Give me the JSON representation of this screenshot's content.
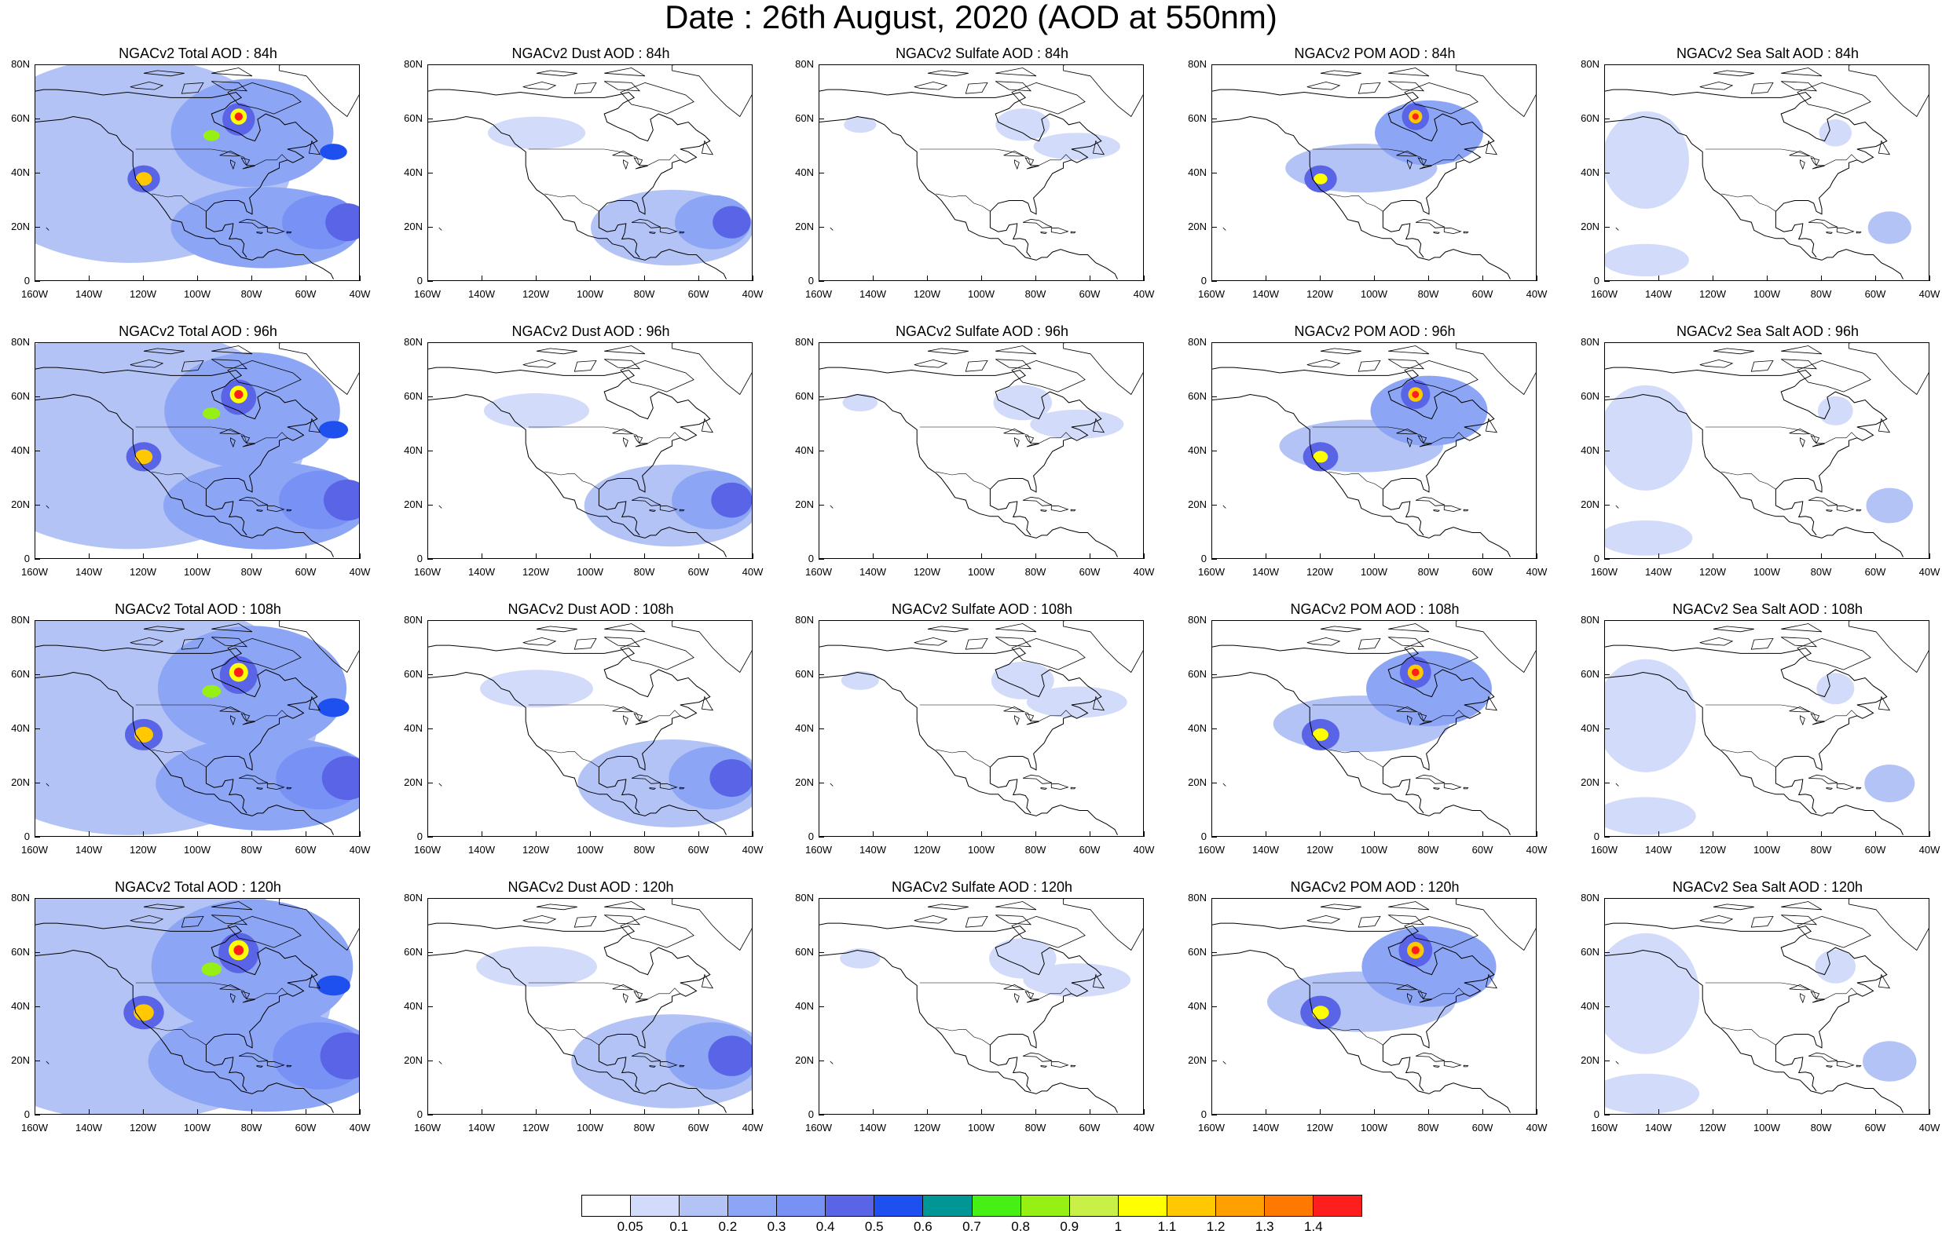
{
  "title": "Date : 26th August, 2020 (AOD at 550nm)",
  "columns": [
    {
      "species": "Total",
      "label_prefix": "NGACv2 Total AOD : "
    },
    {
      "species": "Dust",
      "label_prefix": "NGACv2 Dust AOD : "
    },
    {
      "species": "Sulfate",
      "label_prefix": "NGACv2 Sulfate AOD : "
    },
    {
      "species": "POM",
      "label_prefix": "NGACv2 POM AOD : "
    },
    {
      "species": "Sea Salt",
      "label_prefix": "NGACv2 Sea Salt AOD : "
    }
  ],
  "panel_titles": [
    [
      "NGACv2 Total AOD : 84h",
      "NGACv2 Dust AOD : 84h",
      "NGACv2 Sulfate AOD : 84h",
      "NGACv2 POM AOD : 84h",
      "NGACv2 Sea Salt AOD : 84h"
    ],
    [
      "NGACv2 Total AOD : 96h",
      "NGACv2 Dust AOD : 96h",
      "NGACv2 Sulfate AOD : 96h",
      "NGACv2 POM AOD : 96h",
      "NGACv2 Sea Salt AOD : 96h"
    ],
    [
      "NGACv2 Total AOD : 108h",
      "NGACv2 Dust AOD : 108h",
      "NGACv2 Sulfate AOD : 108h",
      "NGACv2 POM AOD : 108h",
      "NGACv2 Sea Salt AOD : 108h"
    ],
    [
      "NGACv2 Total AOD : 120h",
      "NGACv2 Dust AOD : 120h",
      "NGACv2 Sulfate AOD : 120h",
      "NGACv2 POM AOD : 120h",
      "NGACv2 Sea Salt  AOD : 120h"
    ]
  ],
  "lat_ticks": [
    "80N",
    "60N",
    "40N",
    "20N",
    "0"
  ],
  "lon_ticks": [
    "160W",
    "140W",
    "120W",
    "100W",
    "80W",
    "60W",
    "40W"
  ],
  "map_extent": {
    "lon_min": -160,
    "lon_max": -40,
    "lat_min": 0,
    "lat_max": 80
  },
  "colorbar": {
    "labels": [
      "0.05",
      "0.1",
      "0.2",
      "0.3",
      "0.4",
      "0.5",
      "0.6",
      "0.7",
      "0.8",
      "0.9",
      "1",
      "1.1",
      "1.2",
      "1.3",
      "1.4"
    ],
    "colors": [
      "#ffffff",
      "#d2dcfa",
      "#b4c3f5",
      "#8ca5f5",
      "#7891f5",
      "#5a64e6",
      "#1e50f0",
      "#009696",
      "#46f014",
      "#96f014",
      "#c8f046",
      "#ffff00",
      "#ffc800",
      "#ffa000",
      "#ff7800",
      "#ff1e1e"
    ]
  }
}
